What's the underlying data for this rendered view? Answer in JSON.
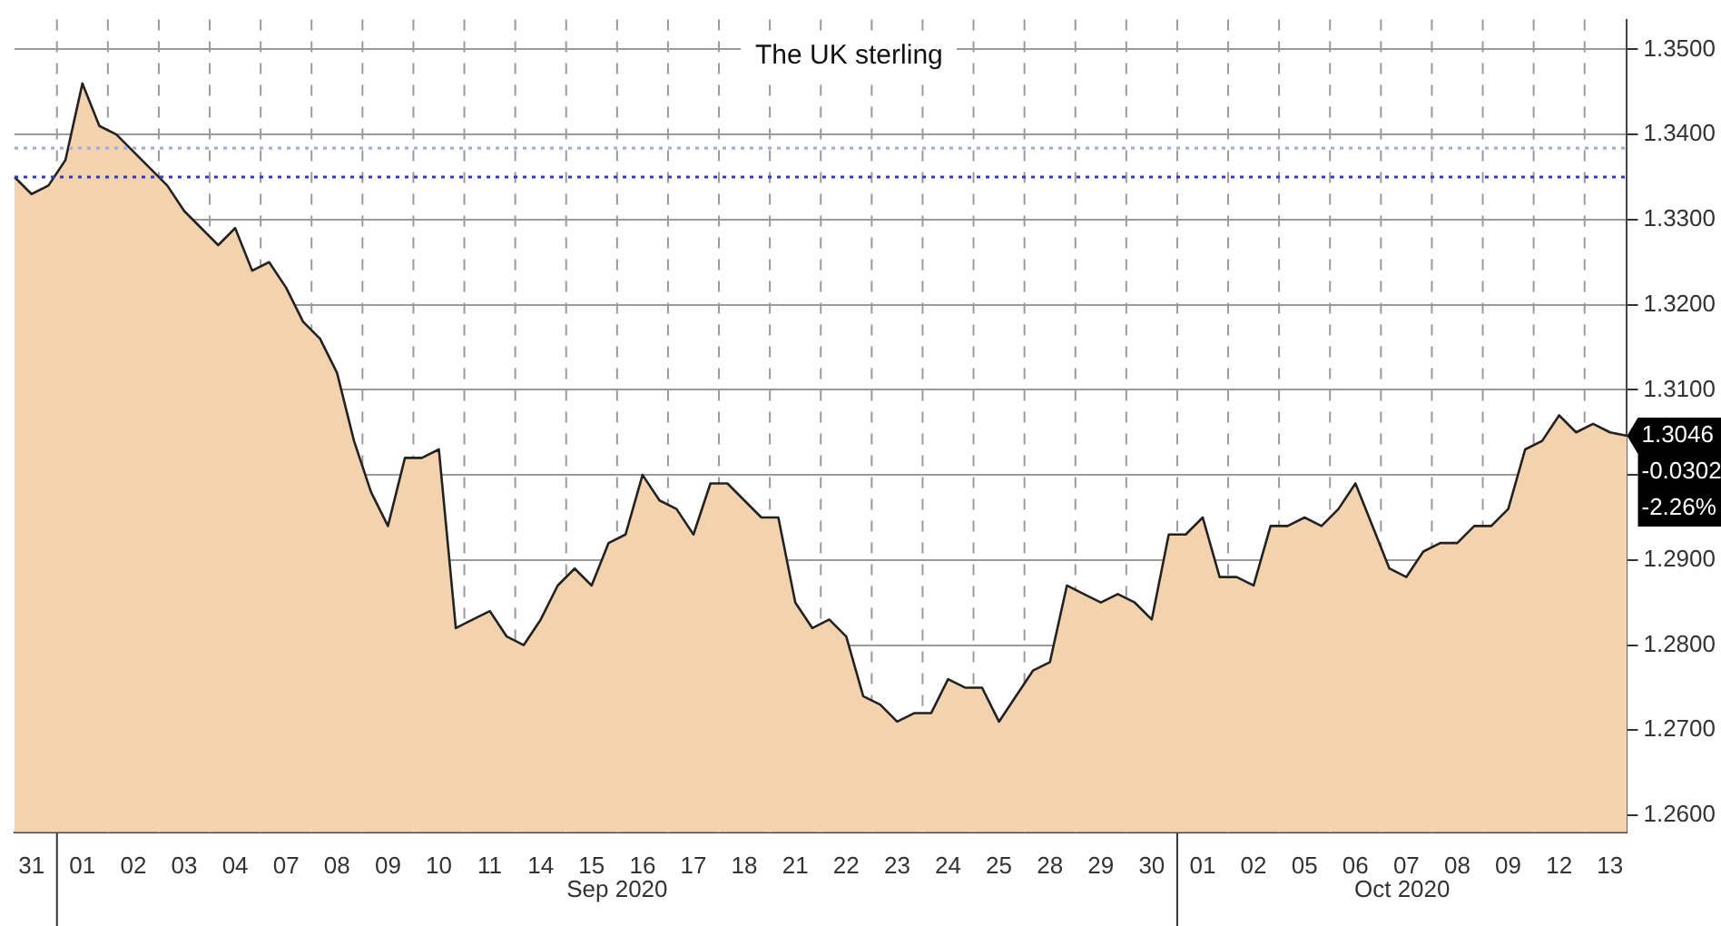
{
  "chart_data": {
    "type": "area",
    "title": "The UK sterling",
    "categories": [
      null,
      "31",
      null,
      null,
      "01",
      null,
      null,
      "02",
      null,
      null,
      "03",
      null,
      null,
      "04",
      null,
      null,
      "07",
      null,
      null,
      "08",
      null,
      null,
      "09",
      null,
      null,
      "10",
      null,
      null,
      "11",
      null,
      null,
      "14",
      null,
      null,
      "15",
      null,
      null,
      "16",
      null,
      null,
      "17",
      null,
      null,
      "18",
      null,
      null,
      "21",
      null,
      null,
      "22",
      null,
      null,
      "23",
      null,
      null,
      "24",
      null,
      null,
      "25",
      null,
      null,
      "28",
      null,
      null,
      "29",
      null,
      null,
      "30",
      null,
      null,
      "01",
      null,
      null,
      "02",
      null,
      null,
      "05",
      null,
      null,
      "06",
      null,
      null,
      "07",
      null,
      null,
      "08",
      null,
      null,
      "09",
      null,
      null,
      "12",
      null,
      null,
      "13",
      null
    ],
    "series": [
      {
        "color": "#f2d3ae",
        "values": [
          1.335,
          1.333,
          1.334,
          1.337,
          1.346,
          1.341,
          1.34,
          1.338,
          1.336,
          1.334,
          1.331,
          1.329,
          1.327,
          1.329,
          1.324,
          1.325,
          1.322,
          1.318,
          1.316,
          1.312,
          1.304,
          1.298,
          1.294,
          1.302,
          1.302,
          1.303,
          1.282,
          1.283,
          1.284,
          1.281,
          1.28,
          1.283,
          1.287,
          1.289,
          1.287,
          1.292,
          1.293,
          1.3,
          1.297,
          1.296,
          1.293,
          1.299,
          1.299,
          1.297,
          1.295,
          1.295,
          1.285,
          1.282,
          1.283,
          1.281,
          1.274,
          1.273,
          1.271,
          1.272,
          1.272,
          1.276,
          1.275,
          1.275,
          1.271,
          1.274,
          1.277,
          1.278,
          1.287,
          1.286,
          1.285,
          1.286,
          1.285,
          1.283,
          1.293,
          1.293,
          1.295,
          1.288,
          1.288,
          1.287,
          1.294,
          1.294,
          1.295,
          1.294,
          1.296,
          1.299,
          1.294,
          1.289,
          1.288,
          1.291,
          1.292,
          1.292,
          1.294,
          1.294,
          1.296,
          1.303,
          1.304,
          1.307,
          1.305,
          1.306,
          1.305,
          1.3046
        ]
      }
    ],
    "ylim": [
      1.258,
      1.3535
    ],
    "yticks": [
      {
        "value": 1.26,
        "label": "1.2600"
      },
      {
        "value": 1.27,
        "label": "1.2700"
      },
      {
        "value": 1.28,
        "label": "1.2800"
      },
      {
        "value": 1.29,
        "label": "1.2900"
      },
      {
        "value": 1.3,
        "label": null
      },
      {
        "value": 1.31,
        "label": "1.3100"
      },
      {
        "value": 1.32,
        "label": "1.3200"
      },
      {
        "value": 1.33,
        "label": "1.3300"
      },
      {
        "value": 1.34,
        "label": "1.3400"
      },
      {
        "value": 1.35,
        "label": "1.3500"
      }
    ],
    "ref_lines": [
      {
        "axis": "y",
        "value": 1.335,
        "color": "#2a3ccc",
        "line_style": "dotted"
      },
      {
        "axis": "y",
        "value": 1.3384,
        "color": "#9fb0e0",
        "line_style": "dotted"
      }
    ],
    "annotations": [
      "1.3046",
      "-0.0302",
      "-2.26%",
      "Sep 2020",
      "Oct 2020"
    ],
    "grid": true,
    "legend": false,
    "marker": "none",
    "line_style": "solid"
  }
}
